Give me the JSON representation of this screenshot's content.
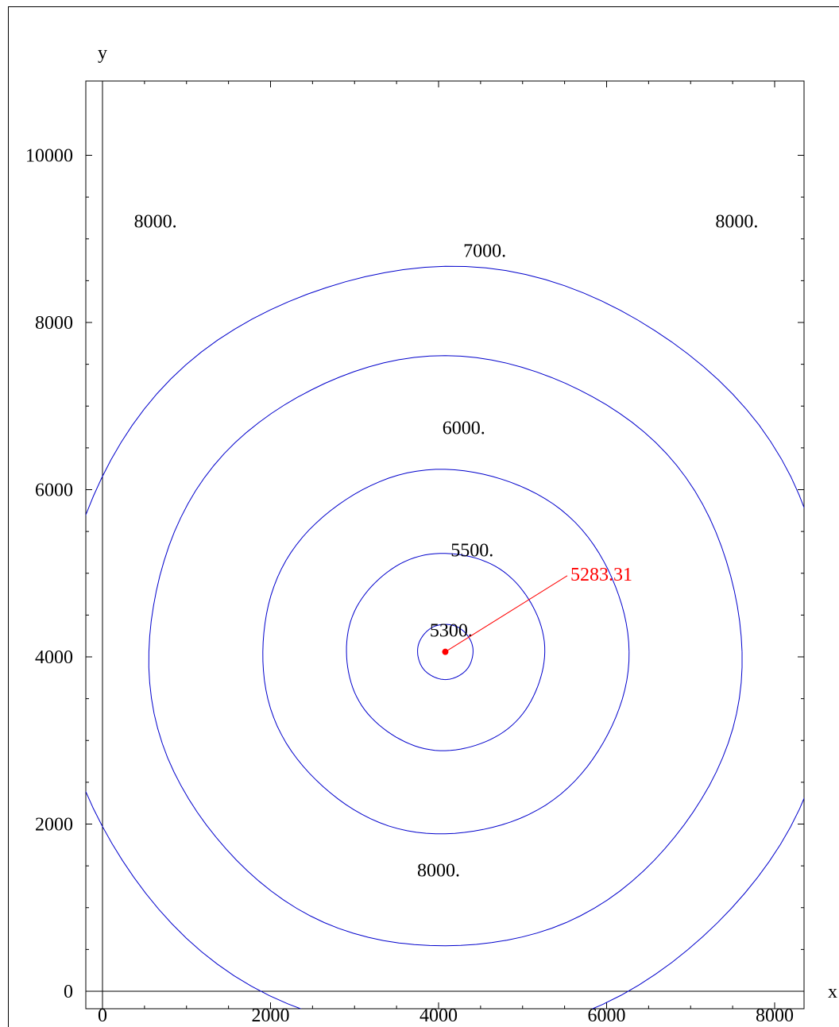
{
  "chart_data": {
    "type": "contour",
    "xlabel": "x",
    "ylabel": "y",
    "xlim": [
      -200,
      8400
    ],
    "ylim": [
      -400,
      10300
    ],
    "x_ticks": [
      0,
      2000,
      4000,
      6000,
      8000
    ],
    "x_tick_labels": [
      "0",
      "2000",
      "4000",
      "6000",
      "8000"
    ],
    "y_ticks": [
      0,
      2000,
      4000,
      6000,
      8000,
      10000
    ],
    "y_tick_labels": [
      "0",
      "2000",
      "4000",
      "6000",
      "8000",
      "10000"
    ],
    "minor_step": 500,
    "center": {
      "x": 4080,
      "y": 4060
    },
    "contours": [
      {
        "level": 5300,
        "radius": 330
      },
      {
        "level": 5500,
        "radius": 1180
      },
      {
        "level": 6000,
        "radius": 2180
      },
      {
        "level": 7000,
        "radius": 3530
      },
      {
        "level": 8000,
        "radius": 4600
      }
    ],
    "contour_labels": [
      {
        "text": "5300.",
        "x": 4150,
        "y": 4320
      },
      {
        "text": "5500.",
        "x": 4400,
        "y": 5280
      },
      {
        "text": "6000.",
        "x": 4300,
        "y": 6740
      },
      {
        "text": "7000.",
        "x": 4550,
        "y": 8860
      },
      {
        "text": "8000.",
        "x": 630,
        "y": 9210
      },
      {
        "text": "8000.",
        "x": 7550,
        "y": 9210
      },
      {
        "text": "8000.",
        "x": 4000,
        "y": 1450
      }
    ],
    "minimum": {
      "x": 4080,
      "y": 4060,
      "value": "5283.31",
      "label_x": 5570,
      "label_y": 4990
    },
    "line_color": "#0000cc",
    "minimum_color": "#ff0000"
  }
}
